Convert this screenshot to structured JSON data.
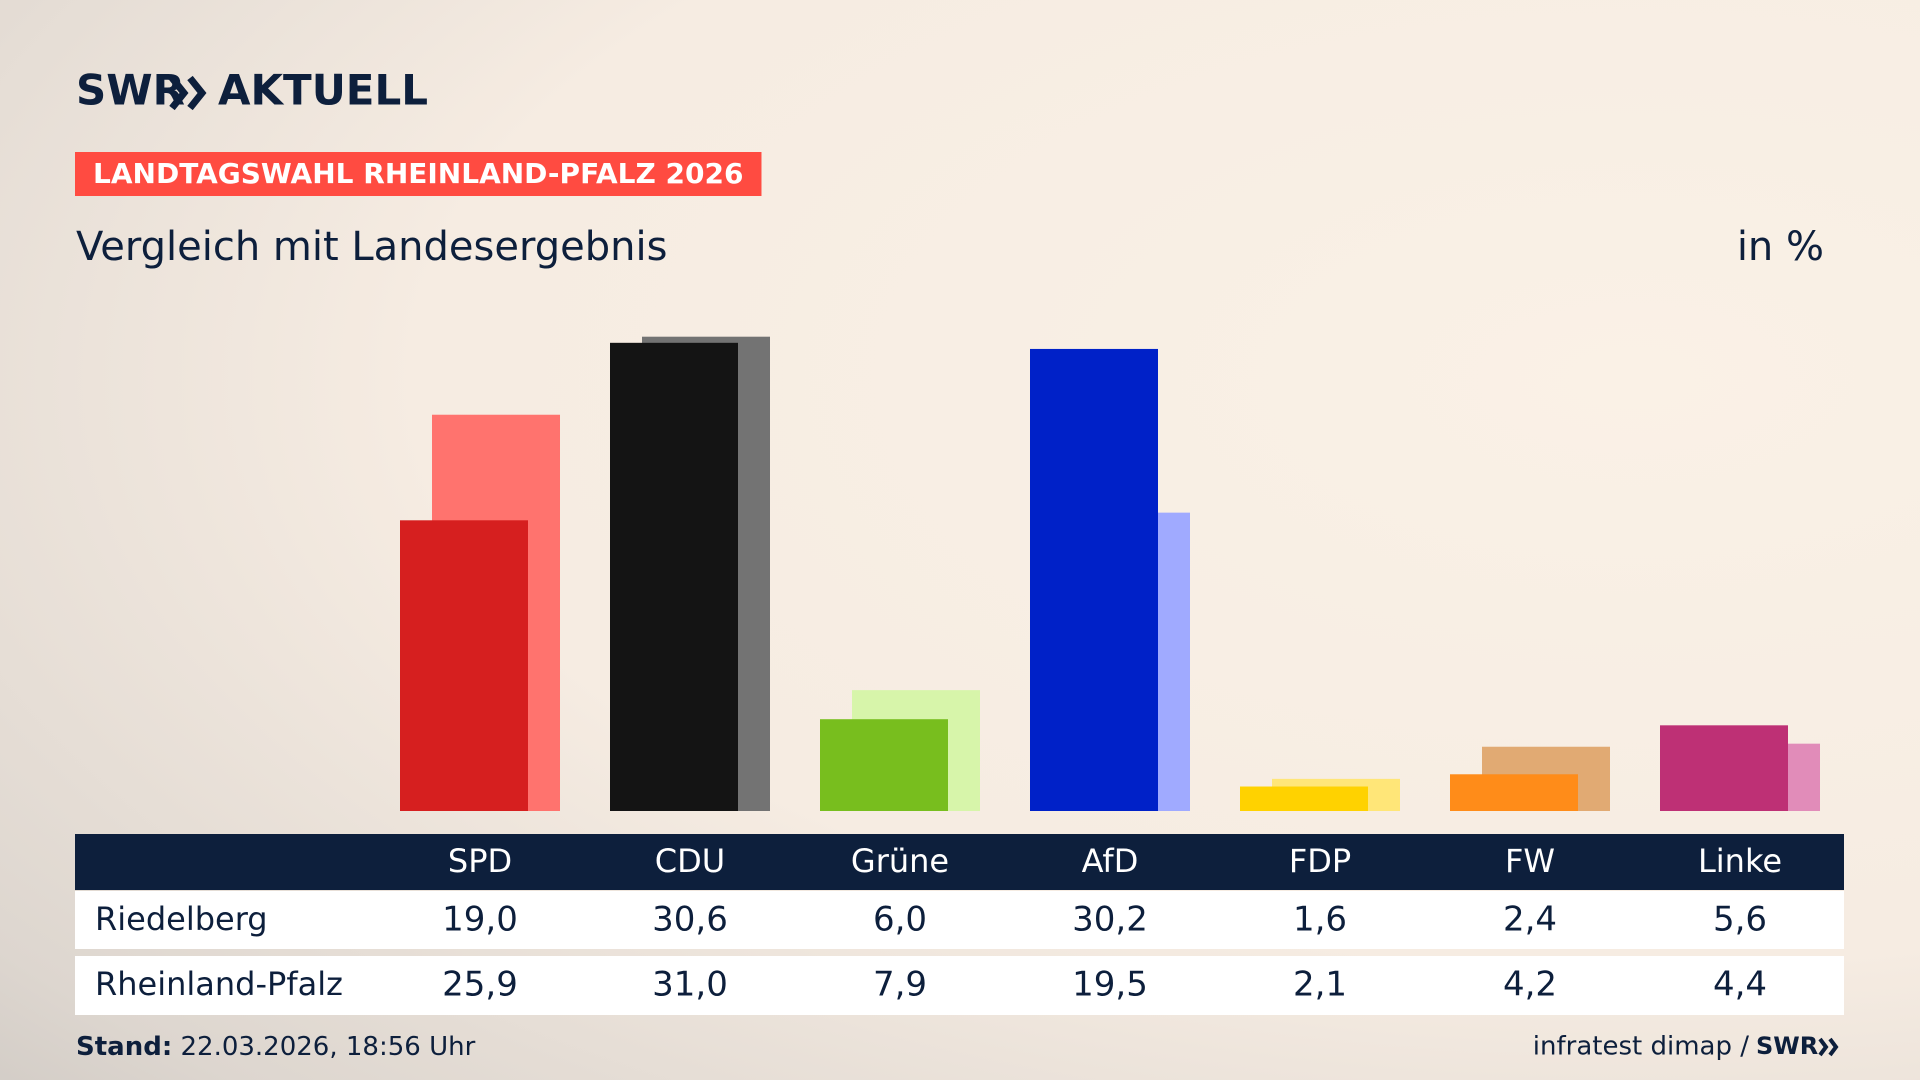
{
  "brand": "SWR",
  "brand_product": "AKTUELL",
  "chart_data": {
    "type": "bar",
    "title": "LANDTAGSWAHL RHEINLAND-PFALZ 2026",
    "subtitle": "Vergleich mit Landesergebnis",
    "unit_label": "in %",
    "categories": [
      "SPD",
      "CDU",
      "Grüne",
      "AfD",
      "FDP",
      "FW",
      "Linke"
    ],
    "series": [
      {
        "name": "Riedelberg",
        "colors": [
          "#d61f1f",
          "#141414",
          "#78be1e",
          "#0021c8",
          "#ffd200",
          "#ff8c19",
          "#be3075"
        ],
        "values": [
          19.0,
          30.6,
          6.0,
          30.2,
          1.6,
          2.4,
          5.6
        ],
        "value_labels": [
          "19,0",
          "30,6",
          "6,0",
          "30,2",
          "1,6",
          "2,4",
          "5,6"
        ]
      },
      {
        "name": "Rheinland-Pfalz",
        "colors": [
          "#ff736e",
          "#737373",
          "#d7f5aa",
          "#a0aaff",
          "#ffe678",
          "#e1aa73",
          "#e18cb9"
        ],
        "values": [
          25.9,
          31.0,
          7.9,
          19.5,
          2.1,
          4.2,
          4.4
        ],
        "value_labels": [
          "25,9",
          "31,0",
          "7,9",
          "19,5",
          "2,1",
          "4,2",
          "4,4"
        ]
      }
    ]
  },
  "footer": {
    "stand_label": "Stand:",
    "stand_value": "22.03.2026, 18:56 Uhr",
    "source": "infratest dimap /"
  }
}
